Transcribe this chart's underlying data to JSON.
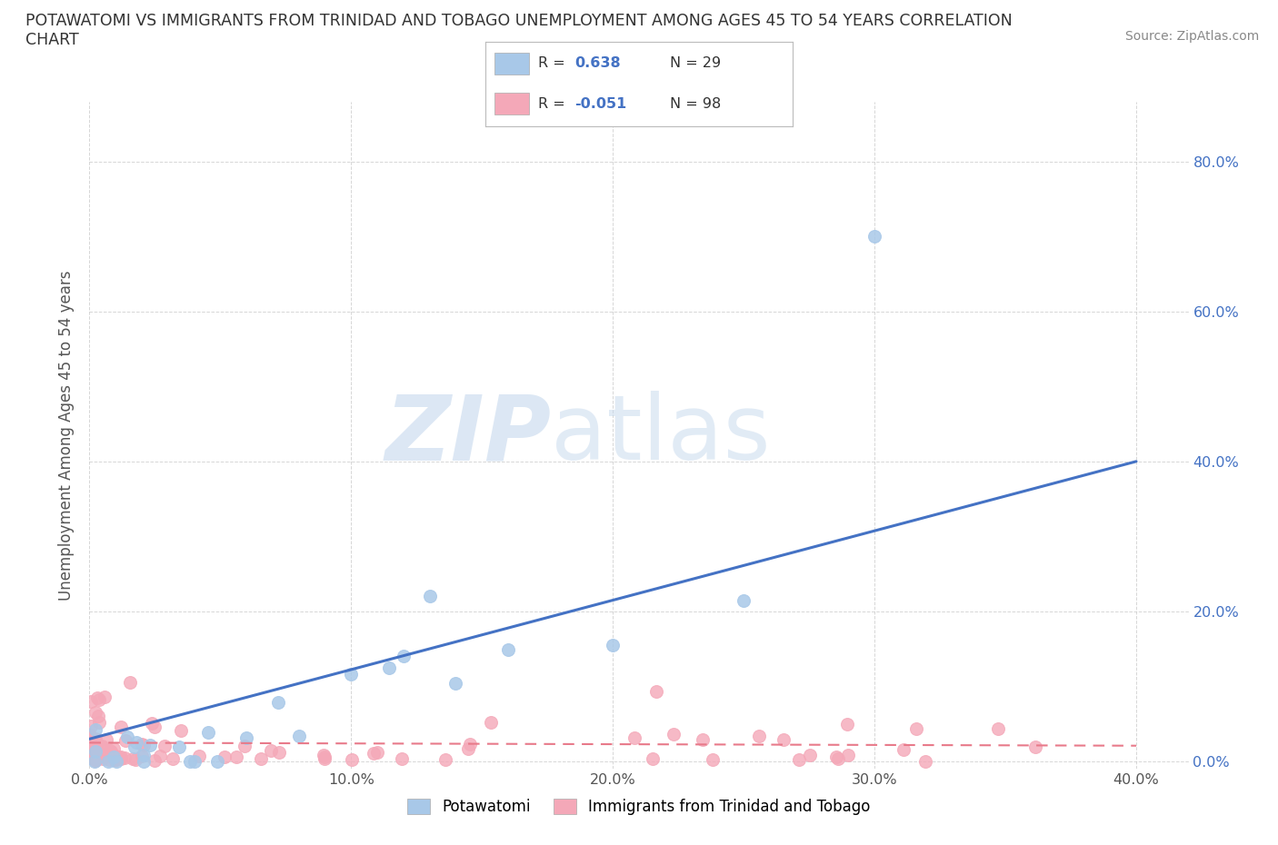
{
  "title": "POTAWATOMI VS IMMIGRANTS FROM TRINIDAD AND TOBAGO UNEMPLOYMENT AMONG AGES 45 TO 54 YEARS CORRELATION\nCHART",
  "source_text": "Source: ZipAtlas.com",
  "ylabel": "Unemployment Among Ages 45 to 54 years",
  "xlim": [
    0.0,
    0.42
  ],
  "ylim": [
    -0.01,
    0.88
  ],
  "xticks": [
    0.0,
    0.1,
    0.2,
    0.3,
    0.4
  ],
  "yticks": [
    0.0,
    0.2,
    0.4,
    0.6,
    0.8
  ],
  "potawatomi_color": "#a8c8e8",
  "trinidad_color": "#f4a8b8",
  "trend_potawatomi_color": "#4472c4",
  "trend_trinidad_color": "#e87a8a",
  "right_tick_color": "#4472c4",
  "background_color": "#ffffff",
  "legend_label_1": "Potawatomi",
  "legend_label_2": "Immigrants from Trinidad and Tobago",
  "watermark_zip": "ZIP",
  "watermark_atlas": "atlas"
}
